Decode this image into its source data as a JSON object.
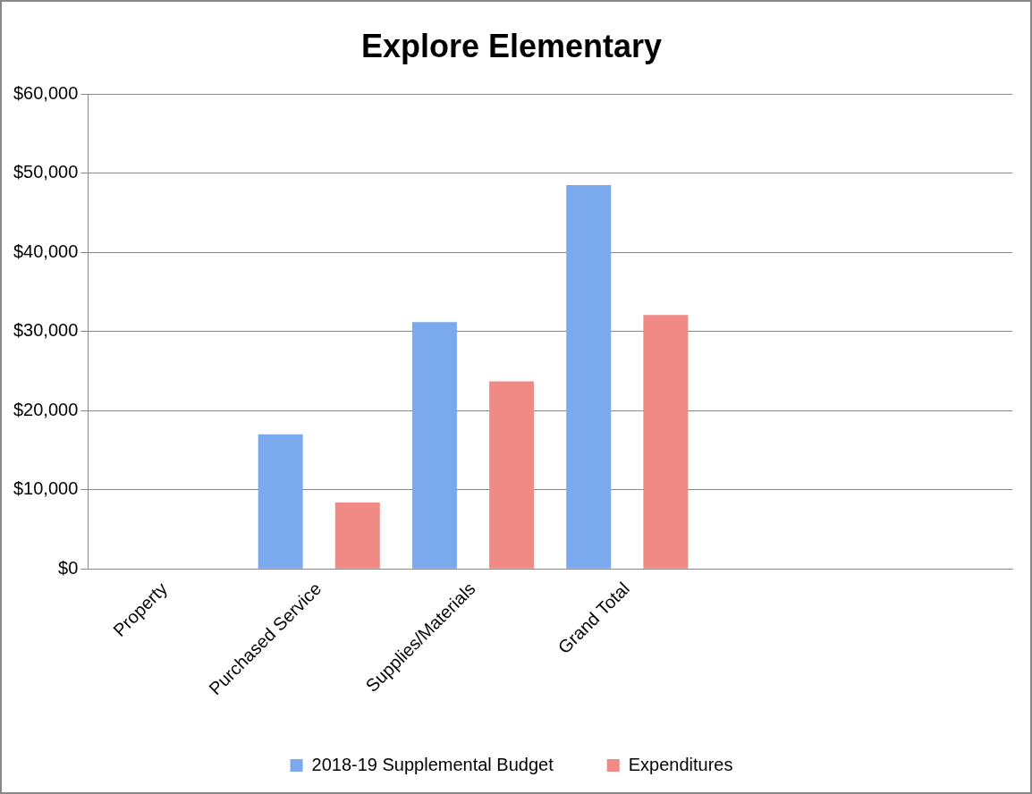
{
  "chart_data": {
    "type": "bar",
    "title": "Explore Elementary",
    "categories": [
      "Property",
      "Purchased Service",
      "Supplies/Materials",
      "Grand Total",
      null,
      null
    ],
    "series": [
      {
        "name": "2018-19 Supplemental Budget",
        "color": "#7aa9ee",
        "values": [
          0,
          17000,
          31200,
          48500,
          null,
          null
        ]
      },
      {
        "name": "Expenditures",
        "color": "#f08a84",
        "values": [
          0,
          8400,
          23700,
          32100,
          null,
          null
        ]
      }
    ],
    "ylim": [
      0,
      60000
    ],
    "yticks": [
      {
        "value": 0,
        "label": "$0"
      },
      {
        "value": 10000,
        "label": "$10,000"
      },
      {
        "value": 20000,
        "label": "$20,000"
      },
      {
        "value": 30000,
        "label": "$30,000"
      },
      {
        "value": 40000,
        "label": "$40,000"
      },
      {
        "value": 50000,
        "label": "$50,000"
      },
      {
        "value": 60000,
        "label": "$60,000"
      }
    ],
    "grid": "y",
    "legend": "bottom"
  }
}
